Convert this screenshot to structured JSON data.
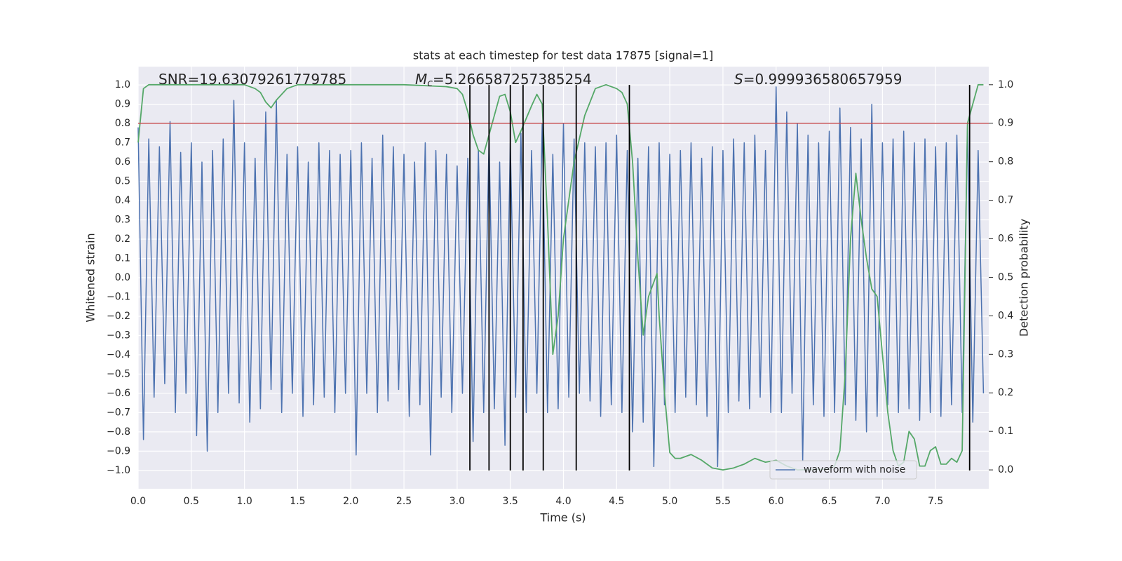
{
  "chart_data": {
    "type": "line",
    "title": "stats at each timestep for test data 17875 [signal=1]",
    "xlabel": "Time (s)",
    "ylabel": "Whitened strain",
    "y2label": "Detection probability",
    "annotations": [
      {
        "text": "SNR=19.63079261779785"
      },
      {
        "symbol": "M",
        "subscript": "c",
        "text": "=5.266587257385254"
      },
      {
        "symbol": "S",
        "text": "=0.999936580657959"
      }
    ],
    "xlim": [
      0,
      8.0
    ],
    "ylim": [
      -1.095,
      1.095
    ],
    "y2lim": [
      -0.049,
      1.047
    ],
    "xticks": [
      {
        "value": 0,
        "label": "0.0"
      },
      0.5,
      {
        "value": 1,
        "label": "1.0"
      },
      1.5,
      {
        "value": 2,
        "label": "2.0"
      },
      2.5,
      {
        "value": 3,
        "label": "3.0"
      },
      3.5,
      {
        "value": 4,
        "label": "4.0"
      },
      4.5,
      {
        "value": 5,
        "label": "5.0"
      },
      5.5,
      {
        "value": 6,
        "label": "6.0"
      },
      6.5,
      {
        "value": 7,
        "label": "7.0"
      },
      7.5
    ],
    "yticks": [
      {
        "value": -1.0,
        "label": "−1.0"
      },
      {
        "value": -0.9,
        "label": "−0.9"
      },
      {
        "value": -0.8,
        "label": "−0.8"
      },
      {
        "value": -0.7,
        "label": "−0.7"
      },
      {
        "value": -0.6,
        "label": "−0.6"
      },
      {
        "value": -0.5,
        "label": "−0.5"
      },
      {
        "value": -0.4,
        "label": "−0.4"
      },
      {
        "value": -0.3,
        "label": "−0.3"
      },
      {
        "value": -0.2,
        "label": "−0.2"
      },
      {
        "value": -0.1,
        "label": "−0.1"
      },
      {
        "value": 0,
        "label": "0.0"
      },
      0.1,
      0.2,
      0.3,
      0.4,
      0.5,
      0.6,
      0.7,
      0.8,
      0.9,
      {
        "value": 1.0,
        "label": "1.0"
      }
    ],
    "y2ticks": [
      {
        "value": 0,
        "label": "0.0"
      },
      0.1,
      0.2,
      0.3,
      0.4,
      0.5,
      0.6,
      0.7,
      0.8,
      0.9,
      {
        "value": 1.0,
        "label": "1.0"
      }
    ],
    "grid": true,
    "legend": "lower right",
    "series": [
      {
        "name": "waveform with noise",
        "color": "#4c72b0",
        "x": [
          0,
          0.05,
          0.1,
          0.15,
          0.2,
          0.25,
          0.3,
          0.35,
          0.4,
          0.45,
          0.5,
          0.55,
          0.6,
          0.65,
          0.7,
          0.75,
          0.8,
          0.85,
          0.9,
          0.95,
          1.0,
          1.05,
          1.1,
          1.15,
          1.2,
          1.25,
          1.3,
          1.35,
          1.4,
          1.45,
          1.5,
          1.55,
          1.6,
          1.65,
          1.7,
          1.75,
          1.8,
          1.85,
          1.9,
          1.95,
          2.0,
          2.05,
          2.1,
          2.15,
          2.2,
          2.25,
          2.3,
          2.35,
          2.4,
          2.45,
          2.5,
          2.55,
          2.6,
          2.65,
          2.7,
          2.75,
          2.8,
          2.85,
          2.9,
          2.95,
          3.0,
          3.05,
          3.1,
          3.15,
          3.2,
          3.25,
          3.3,
          3.35,
          3.4,
          3.45,
          3.5,
          3.55,
          3.6,
          3.65,
          3.7,
          3.75,
          3.8,
          3.85,
          3.9,
          3.95,
          4.0,
          4.05,
          4.1,
          4.15,
          4.2,
          4.25,
          4.3,
          4.35,
          4.4,
          4.45,
          4.5,
          4.55,
          4.6,
          4.65,
          4.7,
          4.75,
          4.8,
          4.85,
          4.9,
          4.95,
          5.0,
          5.05,
          5.1,
          5.15,
          5.2,
          5.25,
          5.3,
          5.35,
          5.4,
          5.45,
          5.5,
          5.55,
          5.6,
          5.65,
          5.7,
          5.75,
          5.8,
          5.85,
          5.9,
          5.95,
          6.0,
          6.05,
          6.1,
          6.15,
          6.2,
          6.25,
          6.3,
          6.35,
          6.4,
          6.45,
          6.5,
          6.55,
          6.6,
          6.65,
          6.7,
          6.75,
          6.8,
          6.85,
          6.9,
          6.95,
          7.0,
          7.05,
          7.1,
          7.15,
          7.2,
          7.25,
          7.3,
          7.35,
          7.4,
          7.45,
          7.5,
          7.55,
          7.6,
          7.65,
          7.7,
          7.75,
          7.8,
          7.85,
          7.9,
          7.95
        ],
        "values": [
          0.78,
          -0.84,
          0.72,
          -0.62,
          0.68,
          -0.55,
          0.81,
          -0.7,
          0.65,
          -0.6,
          0.7,
          -0.82,
          0.6,
          -0.9,
          0.66,
          -0.7,
          0.72,
          -0.6,
          0.92,
          -0.65,
          0.7,
          -0.75,
          0.62,
          -0.68,
          0.86,
          -0.58,
          0.92,
          -0.7,
          0.64,
          -0.6,
          0.68,
          -0.72,
          0.6,
          -0.66,
          0.7,
          -0.62,
          0.66,
          -0.7,
          0.64,
          -0.6,
          0.66,
          -0.92,
          0.7,
          -0.6,
          0.62,
          -0.7,
          0.74,
          -0.64,
          0.68,
          -0.58,
          0.64,
          -0.72,
          0.6,
          -0.66,
          0.7,
          -0.92,
          0.66,
          -0.62,
          0.64,
          -0.7,
          0.58,
          -0.6,
          0.62,
          -0.85,
          0.66,
          -0.7,
          0.72,
          -0.68,
          0.6,
          -0.87,
          0.7,
          -0.62,
          0.75,
          -0.7,
          0.66,
          -0.6,
          0.8,
          -0.7,
          0.64,
          -0.68,
          0.8,
          -0.62,
          0.72,
          -0.6,
          0.7,
          -0.64,
          0.68,
          -0.72,
          0.7,
          -0.66,
          0.74,
          -0.7,
          0.66,
          -0.8,
          0.62,
          -0.75,
          0.68,
          -0.98,
          0.7,
          -0.66,
          0.64,
          -0.7,
          0.66,
          -0.62,
          0.7,
          -0.66,
          0.62,
          -0.72,
          0.68,
          -0.98,
          0.66,
          -0.7,
          0.72,
          -0.64,
          0.7,
          -0.68,
          0.74,
          -0.62,
          0.66,
          -0.7,
          0.99,
          -0.7,
          0.86,
          -0.6,
          0.8,
          -0.95,
          0.74,
          -0.66,
          0.7,
          -0.72,
          0.76,
          -0.7,
          0.88,
          -0.66,
          0.78,
          -0.74,
          0.72,
          -0.8,
          0.9,
          -0.72,
          0.7,
          -0.66,
          0.72,
          -0.7,
          0.76,
          -0.68,
          0.7,
          -0.74,
          0.72,
          -0.7,
          0.68,
          -0.72,
          0.7,
          -0.66,
          0.74,
          -0.7,
          0.78,
          -0.75,
          0.66,
          -0.6
        ]
      },
      {
        "color": "#55a868",
        "axis": "y2",
        "x": [
          0,
          0.05,
          0.1,
          0.5,
          1.0,
          1.1,
          1.15,
          1.2,
          1.25,
          1.3,
          1.4,
          1.5,
          2.0,
          2.5,
          2.9,
          3.0,
          3.05,
          3.1,
          3.15,
          3.2,
          3.25,
          3.3,
          3.35,
          3.4,
          3.45,
          3.5,
          3.55,
          3.6,
          3.7,
          3.75,
          3.8,
          3.85,
          3.9,
          3.95,
          4.0,
          4.1,
          4.2,
          4.3,
          4.4,
          4.5,
          4.55,
          4.6,
          4.65,
          4.7,
          4.75,
          4.8,
          4.88,
          4.9,
          4.95,
          5.0,
          5.05,
          5.1,
          5.2,
          5.3,
          5.4,
          5.5,
          5.6,
          5.7,
          5.8,
          5.9,
          6.0,
          6.1,
          6.2,
          6.5,
          6.55,
          6.6,
          6.65,
          6.7,
          6.75,
          6.8,
          6.85,
          6.9,
          6.95,
          7.0,
          7.05,
          7.1,
          7.15,
          7.2,
          7.25,
          7.3,
          7.35,
          7.4,
          7.45,
          7.5,
          7.55,
          7.6,
          7.65,
          7.7,
          7.75,
          7.8,
          7.85,
          7.9,
          7.95
        ],
        "values": [
          0.85,
          0.99,
          1.0,
          1.0,
          1.0,
          0.99,
          0.98,
          0.955,
          0.94,
          0.96,
          0.99,
          1.0,
          1.0,
          1.0,
          0.995,
          0.99,
          0.975,
          0.93,
          0.87,
          0.83,
          0.82,
          0.87,
          0.92,
          0.97,
          0.975,
          0.93,
          0.85,
          0.88,
          0.945,
          0.975,
          0.95,
          0.65,
          0.3,
          0.4,
          0.6,
          0.8,
          0.92,
          0.99,
          1.0,
          0.99,
          0.98,
          0.95,
          0.8,
          0.55,
          0.35,
          0.45,
          0.51,
          0.4,
          0.2,
          0.045,
          0.03,
          0.03,
          0.04,
          0.025,
          0.005,
          0.0,
          0.005,
          0.015,
          0.03,
          0.02,
          0.025,
          0.01,
          0.0,
          0.002,
          0.01,
          0.05,
          0.25,
          0.6,
          0.77,
          0.65,
          0.55,
          0.47,
          0.45,
          0.3,
          0.15,
          0.05,
          0.01,
          0.02,
          0.1,
          0.08,
          0.01,
          0.01,
          0.05,
          0.06,
          0.015,
          0.015,
          0.03,
          0.02,
          0.05,
          0.9,
          0.95,
          1.0,
          1.0
        ]
      }
    ],
    "hlines": [
      {
        "value": 0.9,
        "axis": "y2",
        "color": "#c44e52"
      }
    ],
    "vlines": {
      "values": [
        3.12,
        3.3,
        3.5,
        3.62,
        3.81,
        4.12,
        4.62,
        7.82
      ],
      "span": [
        -1.0,
        1.0
      ],
      "color": "#000000"
    }
  }
}
